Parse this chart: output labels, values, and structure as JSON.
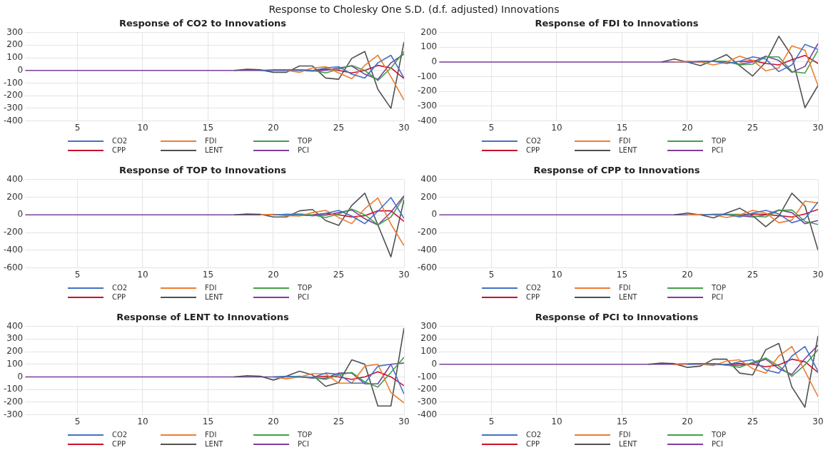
{
  "chart_data": [
    {
      "type": "line",
      "title": "Response of CO2 to Innovations",
      "annotations": [
        "Response to Cholesky One S.D. (d.f. adjusted) Innovations"
      ],
      "x": [
        1,
        2,
        3,
        4,
        5,
        6,
        7,
        8,
        9,
        10,
        11,
        12,
        13,
        14,
        15,
        16,
        17,
        18,
        19,
        20,
        21,
        22,
        23,
        24,
        25,
        26,
        27,
        28,
        29,
        30
      ],
      "xlim": [
        1,
        30
      ],
      "xticks": [
        5,
        10,
        15,
        20,
        25,
        30
      ],
      "ylim": [
        -400,
        300
      ],
      "yticks": [
        -400,
        -300,
        -200,
        -100,
        0,
        100,
        200,
        300
      ],
      "grid": true,
      "legend": "bottom",
      "marker": "none",
      "line_style": "solid",
      "series": [
        {
          "name": "CO2",
          "color": "#4472c4",
          "values": [
            null,
            null,
            null,
            null,
            null,
            null,
            null,
            null,
            null,
            null,
            null,
            null,
            null,
            null,
            null,
            null,
            null,
            null,
            0,
            5,
            5,
            5,
            0,
            20,
            30,
            -30,
            -60,
            60,
            120,
            -60
          ]
        },
        {
          "name": "FDI",
          "color": "#ed7d31",
          "values": [
            null,
            null,
            null,
            null,
            null,
            null,
            null,
            null,
            null,
            null,
            null,
            null,
            null,
            null,
            null,
            null,
            null,
            null,
            null,
            null,
            0,
            -15,
            20,
            30,
            -20,
            -65,
            40,
            120,
            -50,
            -235
          ]
        },
        {
          "name": "TOP",
          "color": "#43a047",
          "values": [
            null,
            null,
            null,
            null,
            null,
            null,
            null,
            null,
            null,
            null,
            null,
            null,
            null,
            null,
            null,
            null,
            null,
            null,
            null,
            null,
            null,
            5,
            0,
            -20,
            10,
            40,
            0,
            -80,
            20,
            150
          ]
        },
        {
          "name": "CPP",
          "color": "#c8102e",
          "values": [
            null,
            null,
            null,
            null,
            null,
            null,
            null,
            null,
            null,
            null,
            null,
            null,
            null,
            null,
            null,
            null,
            null,
            null,
            null,
            null,
            null,
            null,
            0,
            10,
            0,
            -20,
            0,
            40,
            20,
            -65
          ]
        },
        {
          "name": "LENT",
          "color": "#505050",
          "values": [
            null,
            null,
            null,
            null,
            null,
            null,
            null,
            null,
            null,
            null,
            null,
            null,
            null,
            null,
            null,
            null,
            0,
            10,
            5,
            -15,
            -15,
            35,
            35,
            -60,
            -70,
            95,
            150,
            -150,
            -300,
            225
          ]
        },
        {
          "name": "PCI",
          "color": "#7b3fa0",
          "values": [
            0,
            0,
            0,
            0,
            0,
            0,
            0,
            0,
            0,
            0,
            0,
            0,
            0,
            0,
            0,
            0,
            0,
            0,
            0,
            0,
            0,
            0,
            -5,
            0,
            20,
            35,
            -30,
            -70,
            60,
            130
          ]
        }
      ]
    },
    {
      "type": "line",
      "title": "Response of FDI to Innovations",
      "x": [
        1,
        2,
        3,
        4,
        5,
        6,
        7,
        8,
        9,
        10,
        11,
        12,
        13,
        14,
        15,
        16,
        17,
        18,
        19,
        20,
        21,
        22,
        23,
        24,
        25,
        26,
        27,
        28,
        29,
        30
      ],
      "xlim": [
        1,
        30
      ],
      "xticks": [
        5,
        10,
        15,
        20,
        25,
        30
      ],
      "ylim": [
        -400,
        200
      ],
      "yticks": [
        -400,
        -300,
        -200,
        -100,
        0,
        100,
        200
      ],
      "grid": true,
      "legend": "bottom",
      "marker": "none",
      "line_style": "solid",
      "series": [
        {
          "name": "CO2",
          "color": "#4472c4",
          "values": [
            null,
            null,
            null,
            null,
            null,
            null,
            null,
            null,
            null,
            null,
            null,
            null,
            null,
            null,
            null,
            null,
            null,
            null,
            null,
            0,
            5,
            5,
            -10,
            5,
            35,
            20,
            -65,
            -20,
            120,
            85
          ]
        },
        {
          "name": "FDI",
          "color": "#ed7d31",
          "values": [
            null,
            null,
            null,
            null,
            null,
            null,
            null,
            null,
            null,
            null,
            null,
            null,
            null,
            null,
            null,
            null,
            null,
            null,
            0,
            5,
            0,
            -20,
            0,
            40,
            10,
            -60,
            -40,
            110,
            80,
            -160
          ]
        },
        {
          "name": "TOP",
          "color": "#43a047",
          "values": [
            null,
            null,
            null,
            null,
            null,
            null,
            null,
            null,
            null,
            null,
            null,
            null,
            null,
            null,
            null,
            null,
            null,
            null,
            null,
            null,
            0,
            5,
            5,
            -20,
            -15,
            35,
            35,
            -65,
            -75,
            80
          ]
        },
        {
          "name": "CPP",
          "color": "#c8102e",
          "values": [
            null,
            null,
            null,
            null,
            null,
            null,
            null,
            null,
            null,
            null,
            null,
            null,
            null,
            null,
            null,
            null,
            null,
            null,
            null,
            null,
            null,
            null,
            null,
            0,
            10,
            -10,
            -20,
            15,
            45,
            -10
          ]
        },
        {
          "name": "LENT",
          "color": "#505050",
          "values": [
            null,
            null,
            null,
            null,
            null,
            null,
            null,
            null,
            null,
            null,
            null,
            null,
            null,
            null,
            null,
            null,
            null,
            0,
            20,
            0,
            -25,
            10,
            50,
            -25,
            -95,
            0,
            175,
            40,
            -310,
            -160
          ]
        },
        {
          "name": "PCI",
          "color": "#7b3fa0",
          "values": [
            0,
            0,
            0,
            0,
            0,
            0,
            0,
            0,
            0,
            0,
            0,
            0,
            0,
            0,
            0,
            0,
            0,
            0,
            0,
            0,
            0,
            5,
            0,
            -15,
            0,
            40,
            10,
            -70,
            -30,
            125
          ]
        }
      ]
    },
    {
      "type": "line",
      "title": "Response of TOP to Innovations",
      "x": [
        1,
        2,
        3,
        4,
        5,
        6,
        7,
        8,
        9,
        10,
        11,
        12,
        13,
        14,
        15,
        16,
        17,
        18,
        19,
        20,
        21,
        22,
        23,
        24,
        25,
        26,
        27,
        28,
        29,
        30
      ],
      "xlim": [
        1,
        30
      ],
      "xticks": [
        5,
        10,
        15,
        20,
        25,
        30
      ],
      "ylim": [
        -600,
        400
      ],
      "yticks": [
        -600,
        -400,
        -200,
        0,
        200,
        400
      ],
      "grid": true,
      "legend": "bottom",
      "marker": "none",
      "line_style": "solid",
      "series": [
        {
          "name": "CO2",
          "color": "#4472c4",
          "values": [
            null,
            null,
            null,
            null,
            null,
            null,
            null,
            null,
            null,
            null,
            null,
            null,
            null,
            null,
            null,
            null,
            null,
            null,
            null,
            0,
            5,
            0,
            -10,
            15,
            50,
            -15,
            -100,
            40,
            195,
            -40
          ]
        },
        {
          "name": "FDI",
          "color": "#ed7d31",
          "values": [
            null,
            null,
            null,
            null,
            null,
            null,
            null,
            null,
            null,
            null,
            null,
            null,
            null,
            null,
            null,
            null,
            null,
            null,
            0,
            5,
            -10,
            -15,
            25,
            50,
            -30,
            -100,
            70,
            190,
            -105,
            -350
          ]
        },
        {
          "name": "TOP",
          "color": "#43a047",
          "values": [
            null,
            null,
            null,
            null,
            null,
            null,
            null,
            null,
            null,
            null,
            null,
            null,
            null,
            null,
            null,
            null,
            null,
            null,
            null,
            0,
            5,
            10,
            0,
            -30,
            10,
            65,
            0,
            -115,
            -25,
            200
          ]
        },
        {
          "name": "CPP",
          "color": "#c8102e",
          "values": [
            null,
            null,
            null,
            null,
            null,
            null,
            null,
            null,
            null,
            null,
            null,
            null,
            null,
            null,
            null,
            null,
            null,
            null,
            null,
            null,
            null,
            null,
            0,
            15,
            0,
            -25,
            -10,
            45,
            45,
            -75
          ]
        },
        {
          "name": "LENT",
          "color": "#505050",
          "values": [
            null,
            null,
            null,
            null,
            null,
            null,
            null,
            null,
            null,
            null,
            null,
            null,
            null,
            null,
            null,
            null,
            0,
            10,
            5,
            -25,
            -25,
            45,
            60,
            -65,
            -120,
            105,
            245,
            -115,
            -475,
            170
          ]
        },
        {
          "name": "PCI",
          "color": "#7b3fa0",
          "values": [
            0,
            0,
            0,
            0,
            0,
            0,
            0,
            0,
            0,
            0,
            0,
            0,
            0,
            0,
            0,
            0,
            0,
            0,
            0,
            0,
            0,
            0,
            -10,
            -5,
            25,
            55,
            -45,
            -115,
            30,
            215
          ]
        }
      ]
    },
    {
      "type": "line",
      "title": "Response of CPP to Innovations",
      "x": [
        1,
        2,
        3,
        4,
        5,
        6,
        7,
        8,
        9,
        10,
        11,
        12,
        13,
        14,
        15,
        16,
        17,
        18,
        19,
        20,
        21,
        22,
        23,
        24,
        25,
        26,
        27,
        28,
        29,
        30
      ],
      "xlim": [
        1,
        30
      ],
      "xticks": [
        5,
        10,
        15,
        20,
        25,
        30
      ],
      "ylim": [
        -600,
        400
      ],
      "yticks": [
        -600,
        -400,
        -200,
        0,
        200,
        400
      ],
      "grid": true,
      "legend": "bottom",
      "marker": "none",
      "line_style": "solid",
      "series": [
        {
          "name": "CO2",
          "color": "#4472c4",
          "values": [
            null,
            null,
            null,
            null,
            null,
            null,
            null,
            null,
            null,
            null,
            null,
            null,
            null,
            null,
            null,
            null,
            null,
            null,
            null,
            null,
            0,
            5,
            5,
            -25,
            20,
            50,
            10,
            -90,
            -45,
            145
          ]
        },
        {
          "name": "FDI",
          "color": "#ed7d31",
          "values": [
            null,
            null,
            null,
            null,
            null,
            null,
            null,
            null,
            null,
            null,
            null,
            null,
            null,
            null,
            null,
            null,
            null,
            null,
            null,
            0,
            5,
            0,
            -30,
            0,
            50,
            20,
            -90,
            -60,
            155,
            135
          ]
        },
        {
          "name": "TOP",
          "color": "#43a047",
          "values": [
            null,
            null,
            null,
            null,
            null,
            null,
            null,
            null,
            null,
            null,
            null,
            null,
            null,
            null,
            null,
            null,
            null,
            null,
            null,
            null,
            0,
            5,
            5,
            5,
            -15,
            -25,
            50,
            55,
            -75,
            -110
          ]
        },
        {
          "name": "CPP",
          "color": "#c8102e",
          "values": [
            null,
            null,
            null,
            null,
            null,
            null,
            null,
            null,
            null,
            null,
            null,
            null,
            null,
            null,
            null,
            null,
            null,
            null,
            null,
            null,
            null,
            null,
            null,
            0,
            10,
            5,
            -10,
            -25,
            10,
            60
          ]
        },
        {
          "name": "LENT",
          "color": "#505050",
          "values": [
            null,
            null,
            null,
            null,
            null,
            null,
            null,
            null,
            null,
            null,
            null,
            null,
            null,
            null,
            null,
            null,
            null,
            null,
            0,
            20,
            0,
            -35,
            20,
            75,
            -10,
            -135,
            -15,
            245,
            100,
            -400
          ]
        },
        {
          "name": "PCI",
          "color": "#7b3fa0",
          "values": [
            0,
            0,
            0,
            0,
            0,
            0,
            0,
            0,
            0,
            0,
            0,
            0,
            0,
            0,
            0,
            0,
            0,
            0,
            0,
            0,
            0,
            0,
            0,
            -10,
            -25,
            0,
            55,
            25,
            -100,
            -65
          ]
        }
      ]
    },
    {
      "type": "line",
      "title": "Response of LENT to Innovations",
      "x": [
        1,
        2,
        3,
        4,
        5,
        6,
        7,
        8,
        9,
        10,
        11,
        12,
        13,
        14,
        15,
        16,
        17,
        18,
        19,
        20,
        21,
        22,
        23,
        24,
        25,
        26,
        27,
        28,
        29,
        30
      ],
      "xlim": [
        1,
        30
      ],
      "xticks": [
        5,
        10,
        15,
        20,
        25,
        30
      ],
      "ylim": [
        -300,
        400
      ],
      "yticks": [
        -300,
        -200,
        -100,
        0,
        100,
        200,
        300,
        400
      ],
      "grid": true,
      "legend": "bottom",
      "marker": "none",
      "line_style": "solid",
      "series": [
        {
          "name": "CO2",
          "color": "#4472c4",
          "values": [
            null,
            null,
            null,
            null,
            null,
            null,
            null,
            null,
            null,
            null,
            null,
            null,
            null,
            null,
            null,
            null,
            null,
            null,
            null,
            0,
            5,
            0,
            -5,
            30,
            20,
            -50,
            -50,
            85,
            100,
            -135
          ]
        },
        {
          "name": "FDI",
          "color": "#ed7d31",
          "values": [
            null,
            null,
            null,
            null,
            null,
            null,
            null,
            null,
            null,
            null,
            null,
            null,
            null,
            null,
            null,
            null,
            null,
            null,
            null,
            0,
            -15,
            0,
            25,
            25,
            -50,
            -50,
            85,
            100,
            -125,
            -205
          ]
        },
        {
          "name": "TOP",
          "color": "#43a047",
          "values": [
            null,
            null,
            null,
            null,
            null,
            null,
            null,
            null,
            null,
            null,
            null,
            null,
            null,
            null,
            null,
            null,
            null,
            null,
            null,
            null,
            0,
            5,
            -5,
            -20,
            15,
            35,
            -40,
            -80,
            35,
            155
          ]
        },
        {
          "name": "CPP",
          "color": "#c8102e",
          "values": [
            null,
            null,
            null,
            null,
            null,
            null,
            null,
            null,
            null,
            null,
            null,
            null,
            null,
            null,
            null,
            null,
            null,
            null,
            null,
            null,
            null,
            null,
            0,
            5,
            0,
            -20,
            0,
            40,
            0,
            -70
          ]
        },
        {
          "name": "LENT",
          "color": "#505050",
          "values": [
            null,
            null,
            null,
            null,
            null,
            null,
            null,
            null,
            null,
            null,
            null,
            null,
            null,
            null,
            null,
            null,
            0,
            10,
            5,
            -25,
            5,
            45,
            15,
            -75,
            -45,
            135,
            100,
            -230,
            -230,
            385
          ]
        },
        {
          "name": "PCI",
          "color": "#7b3fa0",
          "values": [
            0,
            0,
            0,
            0,
            0,
            0,
            0,
            0,
            0,
            0,
            0,
            0,
            0,
            0,
            0,
            0,
            0,
            0,
            0,
            0,
            0,
            0,
            -10,
            -10,
            30,
            30,
            -55,
            -55,
            100,
            110
          ]
        }
      ]
    },
    {
      "type": "line",
      "title": "Response of PCI to Innovations",
      "x": [
        1,
        2,
        3,
        4,
        5,
        6,
        7,
        8,
        9,
        10,
        11,
        12,
        13,
        14,
        15,
        16,
        17,
        18,
        19,
        20,
        21,
        22,
        23,
        24,
        25,
        26,
        27,
        28,
        29,
        30
      ],
      "xlim": [
        1,
        30
      ],
      "xticks": [
        5,
        10,
        15,
        20,
        25,
        30
      ],
      "ylim": [
        -400,
        300
      ],
      "yticks": [
        -400,
        -300,
        -200,
        -100,
        0,
        100,
        200,
        300
      ],
      "grid": true,
      "legend": "bottom",
      "marker": "none",
      "line_style": "solid",
      "series": [
        {
          "name": "CO2",
          "color": "#4472c4",
          "values": [
            null,
            null,
            null,
            null,
            null,
            null,
            null,
            null,
            null,
            null,
            null,
            null,
            null,
            null,
            null,
            null,
            null,
            null,
            null,
            0,
            5,
            5,
            -5,
            20,
            35,
            -45,
            -70,
            65,
            140,
            -55
          ]
        },
        {
          "name": "FDI",
          "color": "#ed7d31",
          "values": [
            null,
            null,
            null,
            null,
            null,
            null,
            null,
            null,
            null,
            null,
            null,
            null,
            null,
            null,
            null,
            null,
            null,
            null,
            0,
            5,
            0,
            -10,
            25,
            35,
            -35,
            -70,
            65,
            140,
            -55,
            -255
          ]
        },
        {
          "name": "TOP",
          "color": "#43a047",
          "values": [
            null,
            null,
            null,
            null,
            null,
            null,
            null,
            null,
            null,
            null,
            null,
            null,
            null,
            null,
            null,
            null,
            null,
            null,
            null,
            null,
            0,
            5,
            -5,
            -25,
            15,
            50,
            -15,
            -95,
            -5,
            115
          ]
        },
        {
          "name": "CPP",
          "color": "#c8102e",
          "values": [
            null,
            null,
            null,
            null,
            null,
            null,
            null,
            null,
            null,
            null,
            null,
            null,
            null,
            null,
            null,
            null,
            null,
            null,
            0,
            5,
            5,
            0,
            0,
            5,
            0,
            -20,
            -5,
            40,
            20,
            -65
          ]
        },
        {
          "name": "LENT",
          "color": "#505050",
          "values": [
            null,
            null,
            null,
            null,
            null,
            null,
            null,
            null,
            null,
            null,
            null,
            null,
            null,
            null,
            null,
            null,
            0,
            10,
            5,
            -25,
            -15,
            40,
            40,
            -70,
            -85,
            115,
            165,
            -180,
            -340,
            225
          ]
        },
        {
          "name": "PCI",
          "color": "#7b3fa0",
          "values": [
            0,
            0,
            0,
            0,
            0,
            0,
            0,
            0,
            0,
            0,
            0,
            0,
            0,
            0,
            0,
            0,
            0,
            0,
            0,
            0,
            0,
            0,
            -5,
            -10,
            5,
            40,
            -35,
            -80,
            45,
            150
          ]
        }
      ]
    }
  ]
}
